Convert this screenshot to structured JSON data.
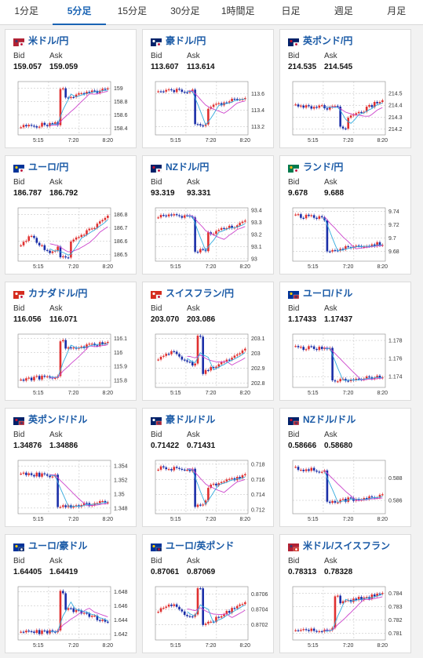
{
  "tabs": [
    "1分足",
    "5分足",
    "15分足",
    "30分足",
    "1時間足",
    "日足",
    "週足",
    "月足"
  ],
  "active_tab": 1,
  "labels": {
    "bid": "Bid",
    "ask": "Ask"
  },
  "x_ticks": [
    "5:15",
    "7:20",
    "8:20"
  ],
  "colors": {
    "up": "#e03030",
    "down": "#1a2ea8",
    "ma_long": "#cc44cc",
    "ma_short": "#33aadd",
    "grid": "#bbbbbb",
    "title": "#1a5aa6"
  },
  "pairs": [
    {
      "name": "米ドル/円",
      "flag": "us-jp-flag",
      "bid": "159.057",
      "ask": "159.059",
      "ticks": [
        "159",
        "158.8",
        "158.6",
        "158.4"
      ],
      "range": [
        158.3,
        159.1
      ],
      "shape": "jumpup"
    },
    {
      "name": "豪ドル/円",
      "flag": "au-jp-flag",
      "bid": "113.607",
      "ask": "113.614",
      "ticks": [
        "113.6",
        "113.4",
        "113.2"
      ],
      "range": [
        113.1,
        113.75
      ],
      "shape": "dropv"
    },
    {
      "name": "英ポンド/円",
      "flag": "gb-jp-flag",
      "bid": "214.535",
      "ask": "214.545",
      "ticks": [
        "214.5",
        "214.4",
        "214.3",
        "214.2"
      ],
      "range": [
        214.15,
        214.6
      ],
      "shape": "dipup"
    },
    {
      "name": "ユーロ/円",
      "flag": "eu-jp-flag",
      "bid": "186.787",
      "ask": "186.792",
      "ticks": [
        "186.8",
        "186.7",
        "186.6",
        "186.5"
      ],
      "range": [
        186.45,
        186.85
      ],
      "shape": "waveup"
    },
    {
      "name": "NZドル/円",
      "flag": "nz-jp-flag",
      "bid": "93.319",
      "ask": "93.331",
      "ticks": [
        "93.4",
        "93.3",
        "93.2",
        "93.1",
        "93"
      ],
      "range": [
        92.98,
        93.42
      ],
      "shape": "dropv"
    },
    {
      "name": "ランド/円",
      "flag": "za-jp-flag",
      "bid": "9.678",
      "ask": "9.688",
      "ticks": [
        "9.74",
        "9.72",
        "9.7",
        "9.68"
      ],
      "range": [
        9.665,
        9.745
      ],
      "shape": "dropflat"
    },
    {
      "name": "カナダドル/円",
      "flag": "ca-jp-flag",
      "bid": "116.056",
      "ask": "116.071",
      "ticks": [
        "116.1",
        "116",
        "115.9",
        "115.8"
      ],
      "range": [
        115.75,
        116.13
      ],
      "shape": "jumpup"
    },
    {
      "name": "スイスフラン/円",
      "flag": "ch-jp-flag",
      "bid": "203.070",
      "ask": "203.086",
      "ticks": [
        "203.1",
        "203",
        "202.9",
        "202.8"
      ],
      "range": [
        202.77,
        203.13
      ],
      "shape": "spike"
    },
    {
      "name": "ユーロ/ドル",
      "flag": "eu-us-flag",
      "bid": "1.17433",
      "ask": "1.17437",
      "ticks": [
        "1.178",
        "1.176",
        "1.174"
      ],
      "range": [
        1.1728,
        1.1787
      ],
      "shape": "downlow"
    },
    {
      "name": "英ポンド/ドル",
      "flag": "gb-us-flag",
      "bid": "1.34876",
      "ask": "1.34886",
      "ticks": [
        "1.354",
        "1.352",
        "1.35",
        "1.348"
      ],
      "range": [
        1.3472,
        1.3548
      ],
      "shape": "downlow"
    },
    {
      "name": "豪ドル/ドル",
      "flag": "au-us-flag",
      "bid": "0.71422",
      "ask": "0.71431",
      "ticks": [
        "0.718",
        "0.716",
        "0.714",
        "0.712"
      ],
      "range": [
        0.7115,
        0.7185
      ],
      "shape": "dropv"
    },
    {
      "name": "NZドル/ドル",
      "flag": "nz-us-flag",
      "bid": "0.58666",
      "ask": "0.58680",
      "ticks": [
        "0.588",
        "0.586"
      ],
      "range": [
        0.5848,
        0.5896
      ],
      "shape": "dropflat"
    },
    {
      "name": "ユーロ/豪ドル",
      "flag": "eu-au-flag",
      "bid": "1.64405",
      "ask": "1.64419",
      "ticks": [
        "1.648",
        "1.646",
        "1.644",
        "1.642"
      ],
      "range": [
        1.6412,
        1.6487
      ],
      "shape": "jumpdown"
    },
    {
      "name": "ユーロ/英ポンド",
      "flag": "eu-gb-flag",
      "bid": "0.87061",
      "ask": "0.87069",
      "ticks": [
        "0.8706",
        "0.8704",
        "0.8702"
      ],
      "range": [
        0.87,
        0.8707
      ],
      "shape": "spike"
    },
    {
      "name": "米ドル/スイスフラン",
      "flag": "us-ch-flag",
      "bid": "0.78313",
      "ask": "0.78328",
      "ticks": [
        "0.784",
        "0.783",
        "0.782",
        "0.781"
      ],
      "range": [
        0.7805,
        0.7845
      ],
      "shape": "jumpup"
    }
  ]
}
